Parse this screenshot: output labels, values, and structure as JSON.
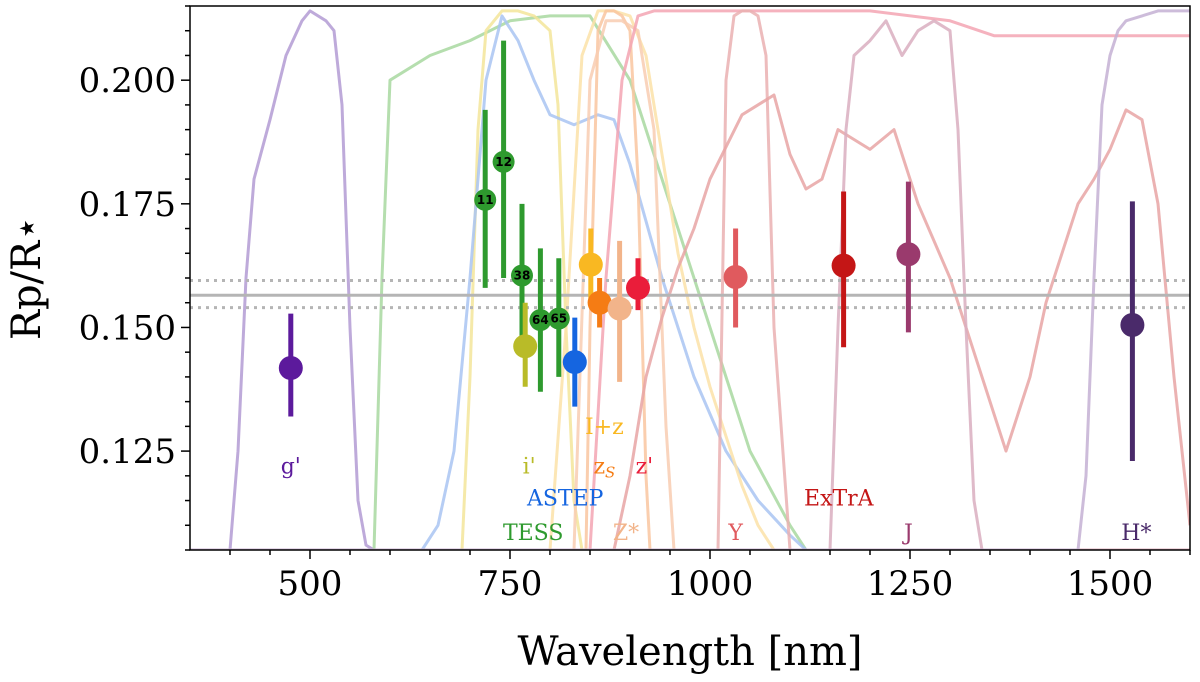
{
  "chart_data": {
    "type": "scatter",
    "title": "",
    "xlabel": "Wavelength [nm]",
    "ylabel": "Rp/R⋆",
    "xlim": [
      350,
      1600
    ],
    "ylim": [
      0.105,
      0.215
    ],
    "x_ticks": [
      500,
      750,
      1000,
      1250,
      1500
    ],
    "x_tick_labels": [
      "500",
      "750",
      "1000",
      "1250",
      "1500"
    ],
    "y_ticks": [
      0.125,
      0.15,
      0.175,
      0.2
    ],
    "y_tick_labels": [
      "0.125",
      "0.150",
      "0.175",
      "0.200"
    ],
    "grid": false,
    "reference_lines": {
      "mean": 0.1565,
      "upper": 0.1595,
      "lower": 0.154,
      "color": "#b5b5b5"
    },
    "points": [
      {
        "instrument": "g'",
        "x": 476,
        "y": 0.1418,
        "lo": 0.132,
        "hi": 0.1528,
        "color": "#5c1a9c"
      },
      {
        "instrument": "TESS",
        "sector": "11",
        "x": 719,
        "y": 0.1758,
        "lo": 0.158,
        "hi": 0.194,
        "color": "#2e9a2e"
      },
      {
        "instrument": "TESS",
        "sector": "12",
        "x": 742,
        "y": 0.1835,
        "lo": 0.16,
        "hi": 0.208,
        "color": "#2e9a2e"
      },
      {
        "instrument": "TESS",
        "sector": "38",
        "x": 765,
        "y": 0.1605,
        "lo": 0.146,
        "hi": 0.175,
        "color": "#2e9a2e"
      },
      {
        "instrument": "i'",
        "x": 769,
        "y": 0.1462,
        "lo": 0.138,
        "hi": 0.155,
        "color": "#b9bb28"
      },
      {
        "instrument": "TESS",
        "sector": "64",
        "x": 788,
        "y": 0.1515,
        "lo": 0.137,
        "hi": 0.166,
        "color": "#2e9a2e"
      },
      {
        "instrument": "TESS",
        "sector": "65",
        "x": 811,
        "y": 0.1518,
        "lo": 0.14,
        "hi": 0.164,
        "color": "#2e9a2e"
      },
      {
        "instrument": "ASTEP",
        "x": 831,
        "y": 0.143,
        "lo": 0.134,
        "hi": 0.152,
        "color": "#1565e0"
      },
      {
        "instrument": "I+z",
        "x": 851,
        "y": 0.1627,
        "lo": 0.155,
        "hi": 0.17,
        "color": "#f9b822"
      },
      {
        "instrument": "zs",
        "x": 862,
        "y": 0.155,
        "lo": 0.15,
        "hi": 0.16,
        "color": "#f57c14"
      },
      {
        "instrument": "Z*",
        "x": 887,
        "y": 0.1538,
        "lo": 0.139,
        "hi": 0.1675,
        "color": "#f2b48a"
      },
      {
        "instrument": "z'",
        "x": 910,
        "y": 0.158,
        "lo": 0.1535,
        "hi": 0.164,
        "color": "#ea1d3a"
      },
      {
        "instrument": "Y",
        "x": 1032,
        "y": 0.1602,
        "lo": 0.15,
        "hi": 0.17,
        "color": "#e05a5e"
      },
      {
        "instrument": "ExTrA",
        "x": 1167,
        "y": 0.1625,
        "lo": 0.146,
        "hi": 0.1775,
        "color": "#c41616"
      },
      {
        "instrument": "J",
        "x": 1248,
        "y": 0.1648,
        "lo": 0.149,
        "hi": 0.1795,
        "color": "#9a3a6d"
      },
      {
        "instrument": "H*",
        "x": 1528,
        "y": 0.1505,
        "lo": 0.123,
        "hi": 0.1755,
        "color": "#4a2a6a"
      }
    ],
    "band_labels": [
      {
        "text": "g'",
        "x": 476,
        "y": 0.1205,
        "color": "#5c1a9c"
      },
      {
        "text": "I+z",
        "x": 868,
        "y": 0.1285,
        "color": "#f9b822"
      },
      {
        "text": "i'",
        "x": 774,
        "y": 0.1205,
        "color": "#b9bb28"
      },
      {
        "text": "zS",
        "x": 868,
        "y": 0.1205,
        "color": "#f57c14"
      },
      {
        "text": "z'",
        "x": 918,
        "y": 0.1205,
        "color": "#ea1d3a"
      },
      {
        "text": "ASTEP",
        "x": 819,
        "y": 0.114,
        "color": "#1565e0"
      },
      {
        "text": "ExTrA",
        "x": 1161,
        "y": 0.114,
        "color": "#c41616"
      },
      {
        "text": "TESS",
        "x": 779,
        "y": 0.107,
        "color": "#2e9a2e"
      },
      {
        "text": "Z*",
        "x": 895,
        "y": 0.107,
        "color": "#f2b48a"
      },
      {
        "text": "Y",
        "x": 1032,
        "y": 0.107,
        "color": "#e05a5e"
      },
      {
        "text": "J",
        "x": 1248,
        "y": 0.107,
        "color": "#9a3a6d"
      },
      {
        "text": "H*",
        "x": 1533,
        "y": 0.107,
        "color": "#4a2a6a"
      }
    ],
    "filter_curves": [
      {
        "name": "g'",
        "color": "#b39bd4",
        "x": [
          350,
          400,
          410,
          420,
          430,
          450,
          470,
          490,
          500,
          520,
          530,
          540,
          550,
          560,
          570,
          580,
          600,
          1600
        ],
        "y": [
          0.105,
          0.105,
          0.125,
          0.16,
          0.18,
          0.192,
          0.205,
          0.212,
          0.214,
          0.212,
          0.21,
          0.195,
          0.15,
          0.115,
          0.106,
          0.105,
          0.105,
          0.105
        ]
      },
      {
        "name": "TESS",
        "color": "#a8d8a0",
        "x": [
          350,
          580,
          590,
          600,
          650,
          700,
          750,
          800,
          850,
          900,
          950,
          1000,
          1050,
          1100,
          1120,
          1600
        ],
        "y": [
          0.105,
          0.105,
          0.16,
          0.2,
          0.205,
          0.208,
          0.212,
          0.213,
          0.213,
          0.2,
          0.175,
          0.15,
          0.125,
          0.11,
          0.105,
          0.105
        ]
      },
      {
        "name": "i'",
        "color": "#f3e59a",
        "x": [
          350,
          690,
          700,
          710,
          720,
          740,
          760,
          780,
          800,
          810,
          820,
          830,
          840,
          1600
        ],
        "y": [
          0.105,
          0.105,
          0.14,
          0.19,
          0.21,
          0.214,
          0.214,
          0.213,
          0.21,
          0.195,
          0.15,
          0.115,
          0.105,
          0.105
        ]
      },
      {
        "name": "ASTEP",
        "color": "#a9c4f2",
        "x": [
          350,
          640,
          660,
          680,
          700,
          720,
          740,
          760,
          780,
          800,
          830,
          860,
          880,
          900,
          940,
          980,
          1020,
          1060,
          1100,
          1120,
          1600
        ],
        "y": [
          0.105,
          0.105,
          0.11,
          0.125,
          0.16,
          0.2,
          0.213,
          0.208,
          0.2,
          0.193,
          0.191,
          0.193,
          0.192,
          0.183,
          0.16,
          0.14,
          0.125,
          0.115,
          0.108,
          0.105,
          0.105
        ]
      },
      {
        "name": "I+z",
        "color": "#fce2a8",
        "x": [
          350,
          800,
          820,
          840,
          860,
          880,
          900,
          920,
          940,
          960,
          980,
          1000,
          1020,
          1040,
          1060,
          1080,
          1600
        ],
        "y": [
          0.105,
          0.105,
          0.15,
          0.205,
          0.214,
          0.214,
          0.213,
          0.205,
          0.185,
          0.165,
          0.15,
          0.138,
          0.128,
          0.118,
          0.11,
          0.105,
          0.105
        ]
      },
      {
        "name": "zs",
        "color": "#f9c6a0",
        "x": [
          350,
          845,
          850,
          860,
          870,
          880,
          890,
          900,
          910,
          920,
          925,
          1600
        ],
        "y": [
          0.105,
          0.105,
          0.15,
          0.21,
          0.214,
          0.214,
          0.213,
          0.21,
          0.18,
          0.12,
          0.105,
          0.105
        ]
      },
      {
        "name": "Z*",
        "color": "#f8cdb2",
        "x": [
          350,
          830,
          850,
          870,
          890,
          910,
          930,
          945,
          955,
          1600
        ],
        "y": [
          0.105,
          0.105,
          0.2,
          0.212,
          0.212,
          0.21,
          0.19,
          0.13,
          0.105,
          0.105
        ]
      },
      {
        "name": "z'",
        "color": "#f3a5b3",
        "x": [
          350,
          850,
          870,
          890,
          910,
          930,
          960,
          1000,
          1100,
          1200,
          1300,
          1355,
          1600
        ],
        "y": [
          0.105,
          0.105,
          0.16,
          0.2,
          0.213,
          0.214,
          0.214,
          0.214,
          0.214,
          0.214,
          0.212,
          0.209,
          0.209
        ]
      },
      {
        "name": "Y",
        "color": "#eab0b2",
        "x": [
          350,
          1010,
          1020,
          1030,
          1040,
          1050,
          1060,
          1070,
          1080,
          1100,
          1600
        ],
        "y": [
          0.105,
          0.105,
          0.2,
          0.213,
          0.214,
          0.214,
          0.213,
          0.205,
          0.15,
          0.105,
          0.105
        ]
      },
      {
        "name": "ExTrA",
        "color": "#e8a4a4",
        "x": [
          350,
          880,
          900,
          920,
          940,
          960,
          980,
          1000,
          1040,
          1080,
          1100,
          1120,
          1140,
          1160,
          1180,
          1200,
          1230,
          1260,
          1300,
          1340,
          1370,
          1400,
          1420,
          1440,
          1460,
          1480,
          1500,
          1520,
          1540,
          1560,
          1580,
          1600
        ],
        "y": [
          0.105,
          0.105,
          0.12,
          0.14,
          0.152,
          0.162,
          0.17,
          0.18,
          0.193,
          0.197,
          0.185,
          0.178,
          0.18,
          0.19,
          0.188,
          0.186,
          0.19,
          0.175,
          0.16,
          0.14,
          0.125,
          0.14,
          0.155,
          0.165,
          0.175,
          0.18,
          0.186,
          0.194,
          0.192,
          0.175,
          0.14,
          0.11
        ]
      },
      {
        "name": "J",
        "color": "#d9aec0",
        "x": [
          350,
          1150,
          1160,
          1170,
          1180,
          1200,
          1220,
          1240,
          1260,
          1280,
          1300,
          1310,
          1320,
          1330,
          1340,
          1600
        ],
        "y": [
          0.105,
          0.105,
          0.15,
          0.19,
          0.205,
          0.208,
          0.212,
          0.205,
          0.21,
          0.212,
          0.21,
          0.19,
          0.15,
          0.115,
          0.105,
          0.105
        ]
      },
      {
        "name": "H*",
        "color": "#c4b0d4",
        "x": [
          350,
          1460,
          1470,
          1480,
          1490,
          1500,
          1510,
          1520,
          1540,
          1560,
          1580,
          1600
        ],
        "y": [
          0.105,
          0.105,
          0.12,
          0.16,
          0.195,
          0.205,
          0.21,
          0.212,
          0.213,
          0.214,
          0.214,
          0.214
        ]
      }
    ]
  }
}
